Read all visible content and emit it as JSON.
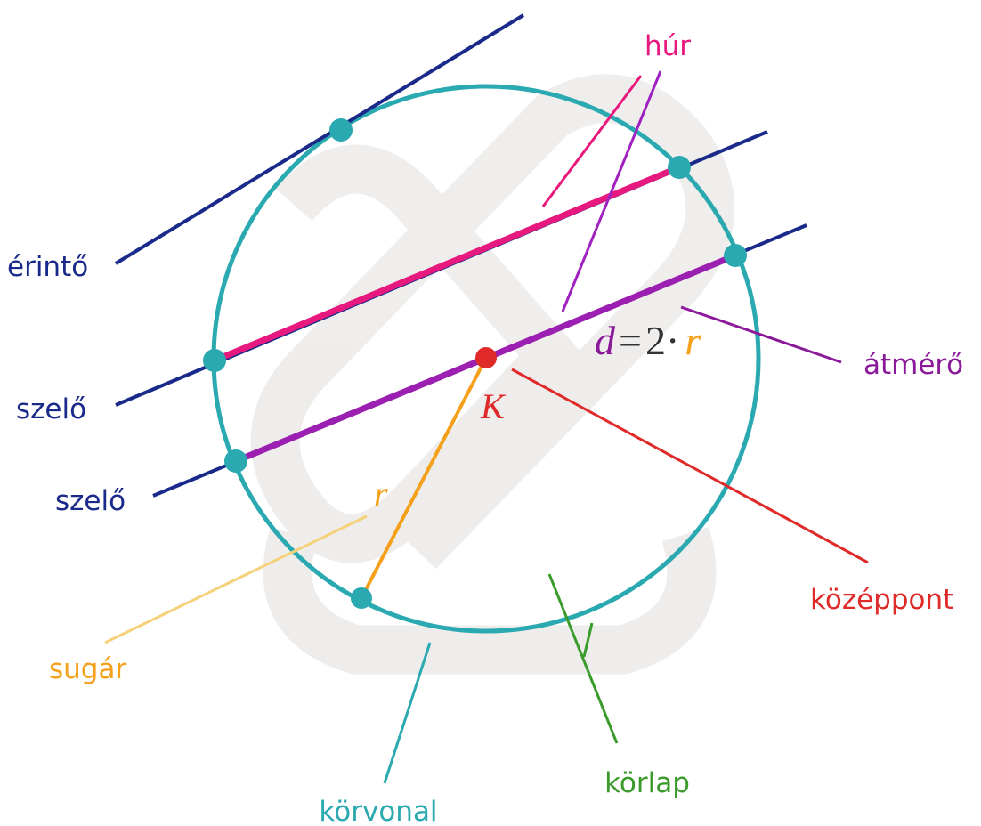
{
  "labels": {
    "chord": "húr",
    "tangent": "érintő",
    "secant_1": "szelő",
    "secant_2": "szelő",
    "diameter": "átmérő",
    "center": "középpont",
    "radius": "sugár",
    "circle_line": "körvonal",
    "disk": "körlap"
  },
  "symbols": {
    "center": "K",
    "radius": "r"
  },
  "formula": {
    "d": "d",
    "eq": "=",
    "two": "2·",
    "r": "r"
  }
}
